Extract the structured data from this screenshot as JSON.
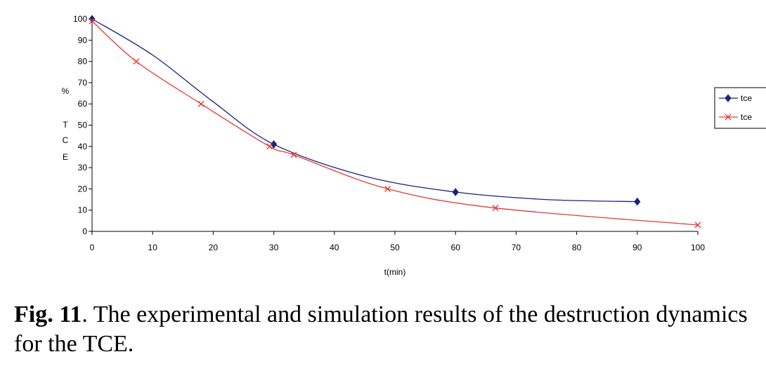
{
  "chart_data": {
    "type": "line",
    "title": "",
    "xlabel": "t(min)",
    "ylabel_lines": [
      "%",
      "T",
      "C",
      "E"
    ],
    "xlim": [
      0,
      100
    ],
    "ylim": [
      0,
      100
    ],
    "x_ticks": [
      0,
      10,
      20,
      30,
      40,
      50,
      60,
      70,
      80,
      90,
      100
    ],
    "y_ticks": [
      0,
      10,
      20,
      30,
      40,
      50,
      60,
      70,
      80,
      90,
      100
    ],
    "grid": false,
    "legend_position": "right",
    "series": [
      {
        "name": "tce",
        "color": "#1a237e",
        "marker": "diamond",
        "points": [
          [
            0,
            100
          ],
          [
            30,
            41
          ],
          [
            60,
            18.5
          ],
          [
            90,
            14
          ]
        ],
        "curve": [
          [
            0,
            100
          ],
          [
            10,
            83
          ],
          [
            20,
            61
          ],
          [
            30,
            41
          ],
          [
            45,
            26
          ],
          [
            60,
            18.5
          ],
          [
            75,
            15
          ],
          [
            90,
            14
          ]
        ]
      },
      {
        "name": "tce",
        "color": "#e53935",
        "marker": "x",
        "points": [
          [
            0,
            99
          ],
          [
            7.3,
            80
          ],
          [
            18,
            60
          ],
          [
            29.3,
            40
          ],
          [
            33.3,
            36
          ],
          [
            48.8,
            20
          ],
          [
            66.6,
            11
          ],
          [
            100,
            3
          ]
        ],
        "curve": [
          [
            0,
            99
          ],
          [
            7.3,
            80
          ],
          [
            18,
            60
          ],
          [
            29.3,
            40
          ],
          [
            33.3,
            36
          ],
          [
            48.8,
            20
          ],
          [
            66.6,
            11
          ],
          [
            100,
            3
          ]
        ]
      }
    ]
  },
  "caption": {
    "label": "Fig. 11",
    "text": ". The experimental and simulation results of the destruction dynamics for the TCE."
  }
}
